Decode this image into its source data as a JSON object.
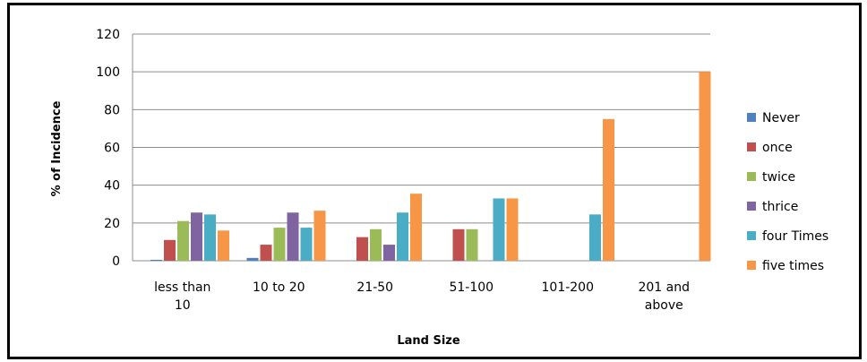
{
  "chart_data": {
    "type": "bar",
    "title": "",
    "xlabel": "Land Size",
    "ylabel": "% of Incidence",
    "ylim": [
      0,
      120
    ],
    "yticks": [
      0,
      20,
      40,
      60,
      80,
      100,
      120
    ],
    "grid": true,
    "legend_position": "right",
    "categories": [
      [
        "less than",
        "10"
      ],
      [
        "10 to 20"
      ],
      [
        "21-50"
      ],
      [
        "51-100"
      ],
      [
        "101-200"
      ],
      [
        "201 and",
        "above"
      ]
    ],
    "series": [
      {
        "name": "Never",
        "color": "#4f81bd",
        "values": [
          0.5,
          1.5,
          0,
          0,
          0,
          0
        ]
      },
      {
        "name": "once",
        "color": "#c0504d",
        "values": [
          11,
          8.5,
          12.5,
          16.7,
          0,
          0
        ]
      },
      {
        "name": "twice",
        "color": "#9bbb59",
        "values": [
          21,
          17.5,
          16.7,
          16.7,
          0,
          0
        ]
      },
      {
        "name": "thrice",
        "color": "#8064a2",
        "values": [
          25.5,
          25.5,
          8.5,
          0,
          0,
          0
        ]
      },
      {
        "name": "four Times",
        "color": "#4bacc6",
        "values": [
          24.5,
          17.5,
          25.5,
          33,
          24.5,
          0
        ]
      },
      {
        "name": "five times",
        "color": "#f79646",
        "values": [
          16,
          26.5,
          35.5,
          33,
          75,
          100
        ]
      }
    ]
  }
}
